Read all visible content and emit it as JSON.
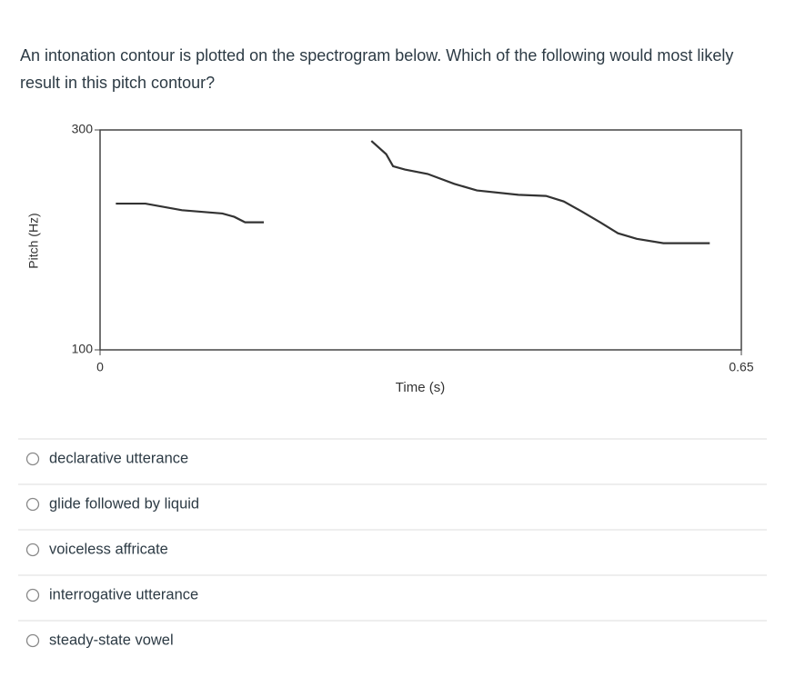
{
  "question": "An intonation contour is plotted on the spectrogram below.  Which of the following would most likely result in this pitch contour?",
  "chart_data": {
    "type": "line",
    "xlabel": "Time (s)",
    "ylabel": "Pitch (Hz)",
    "xlim": [
      0,
      0.65
    ],
    "ylim": [
      100,
      300
    ],
    "xticks": [
      0,
      0.65
    ],
    "yticks": [
      100,
      300
    ],
    "color": "#333333",
    "series": [
      {
        "x": [
          0.016,
          0.046,
          0.083,
          0.124,
          0.136,
          0.147,
          0.166
        ],
        "values": [
          233,
          233,
          227,
          224,
          221,
          216,
          216
        ]
      },
      {
        "x": [
          0.275,
          0.29,
          0.297,
          0.309,
          0.332,
          0.359,
          0.382,
          0.424,
          0.452,
          0.47,
          0.488,
          0.507,
          0.525,
          0.544,
          0.571,
          0.618
        ],
        "values": [
          290,
          278,
          267,
          264,
          260,
          251,
          245,
          241,
          240,
          235,
          226,
          216,
          206,
          201,
          197,
          197
        ]
      }
    ]
  },
  "options": [
    "declarative utterance",
    "glide followed by liquid",
    "voiceless affricate",
    "interrogative utterance",
    "steady-state vowel"
  ]
}
